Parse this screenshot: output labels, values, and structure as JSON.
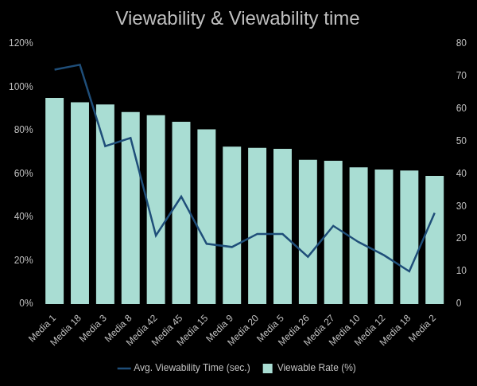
{
  "chart_data": {
    "type": "bar",
    "title": "Viewability & Viewability time",
    "categories": [
      "Media 1",
      "Media 18",
      "Media 3",
      "Media 8",
      "Media 42",
      "Media 45",
      "Media 15",
      "Media 9",
      "Media 20",
      "Media 5",
      "Media 26",
      "Media 27",
      "Media 10",
      "Media 12",
      "Media 18",
      "Media 2"
    ],
    "series": [
      {
        "name": "Viewable Rate (%)",
        "type": "bar",
        "color": "#a9ddd3",
        "values": [
          95,
          93,
          92,
          88.5,
          87,
          84,
          80.5,
          72.5,
          72,
          71.5,
          66.5,
          66,
          63,
          62,
          61.5,
          59
        ]
      },
      {
        "name": "Avg. Viewability Time (sec.)",
        "type": "line",
        "color": "#1f4e79",
        "axis": "y2",
        "values": [
          72,
          73.5,
          48.5,
          51,
          21,
          33,
          18.5,
          17.5,
          21.5,
          21.5,
          14.5,
          24,
          19,
          15,
          10,
          28
        ]
      }
    ],
    "ylim": [
      0,
      120
    ],
    "yticks": [
      {
        "value": 0,
        "label": "0%"
      },
      {
        "value": 20,
        "label": "20%"
      },
      {
        "value": 40,
        "label": "40%"
      },
      {
        "value": 60,
        "label": "60%"
      },
      {
        "value": 80,
        "label": "80%"
      },
      {
        "value": 100,
        "label": "100%"
      },
      {
        "value": 120,
        "label": "120%"
      }
    ],
    "y2lim": [
      0,
      80
    ],
    "y2ticks": [
      0,
      10,
      20,
      30,
      40,
      50,
      60,
      70,
      80
    ],
    "grid": false,
    "legend": "bottom"
  }
}
